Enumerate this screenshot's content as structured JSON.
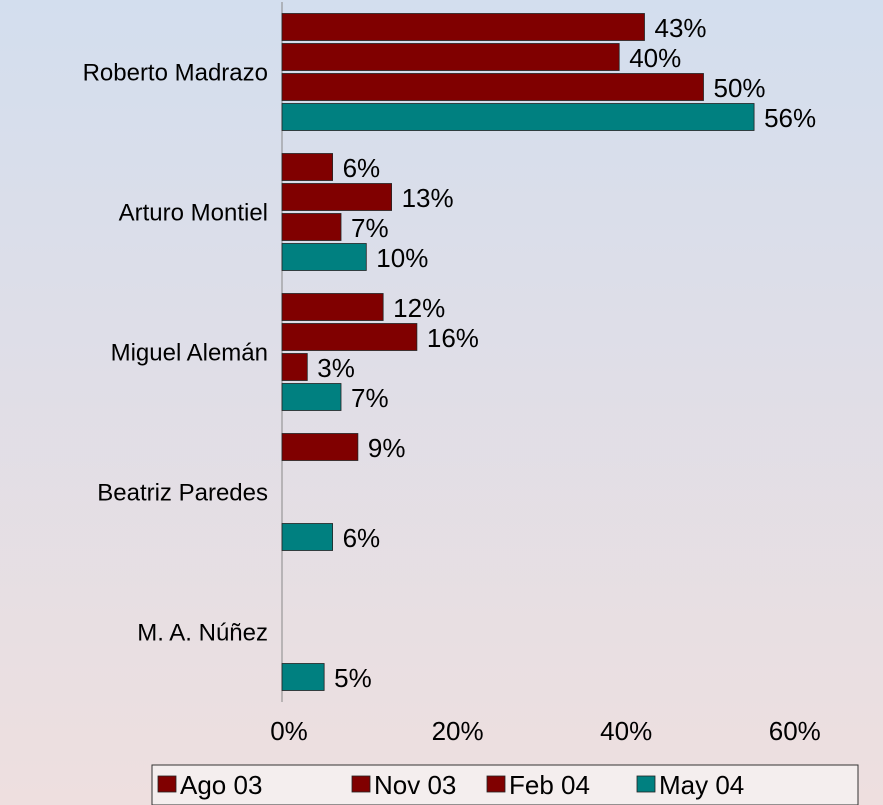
{
  "chart_data": {
    "type": "bar",
    "orientation": "horizontal",
    "categories": [
      "Roberto Madrazo",
      "Arturo Montiel",
      "Miguel Alemán",
      "Beatriz Paredes",
      "M. A. Núñez"
    ],
    "series": [
      {
        "name": "Ago 03",
        "color": "#800000",
        "values": [
          43,
          6,
          12,
          9,
          null
        ],
        "value_labels": [
          "43%",
          "6%",
          "12%",
          "9%",
          null
        ]
      },
      {
        "name": "Nov 03",
        "color": "#800000",
        "values": [
          40,
          13,
          16,
          null,
          null
        ],
        "value_labels": [
          "40%",
          "13%",
          "16%",
          null,
          null
        ]
      },
      {
        "name": "Feb 04",
        "color": "#800000",
        "values": [
          50,
          7,
          3,
          null,
          null
        ],
        "value_labels": [
          "50%",
          "7%",
          "3%",
          null,
          null
        ]
      },
      {
        "name": "May 04",
        "color": "#008080",
        "values": [
          56,
          10,
          7,
          6,
          5
        ],
        "value_labels": [
          "56%",
          "10%",
          "7%",
          "6%",
          "5%"
        ]
      }
    ],
    "xlim": [
      0,
      70
    ],
    "xticks": [
      {
        "value": 0,
        "label": "0%"
      },
      {
        "value": 20,
        "label": "20%"
      },
      {
        "value": 40,
        "label": "40%"
      },
      {
        "value": 60,
        "label": "60%"
      }
    ],
    "legend": "bottom"
  }
}
